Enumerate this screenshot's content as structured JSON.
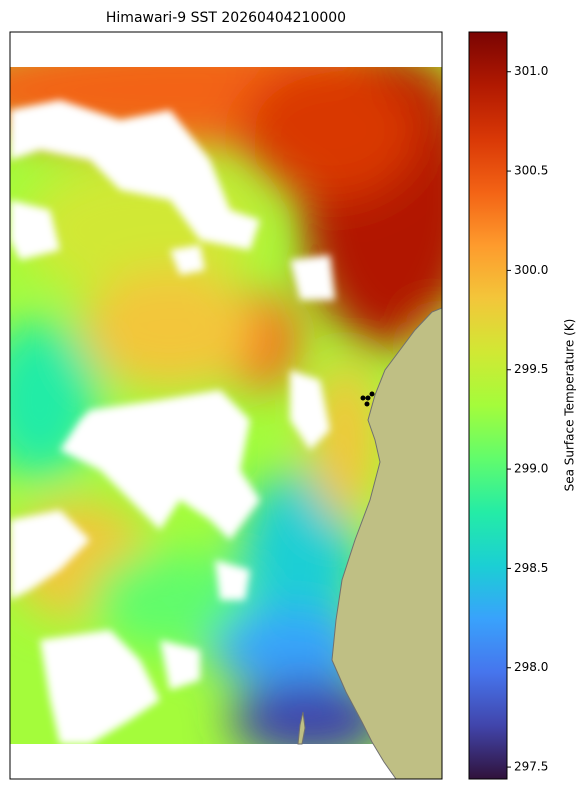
{
  "title": "Himawari-9 SST 20260404210000",
  "colorbar": {
    "label": "Sea Surface Temperature (K)",
    "lim": [
      297.44,
      301.2
    ],
    "ticks": [
      297.5,
      {
        "value": 298,
        "label": "298.0"
      },
      298.5,
      {
        "value": 299,
        "label": "299.0"
      },
      299.5,
      {
        "value": 300,
        "label": "300.0"
      },
      300.5,
      {
        "value": 301,
        "label": "301.0"
      }
    ],
    "colormap": [
      "#30123b",
      "#4145ab",
      "#4675ed",
      "#39a2fc",
      "#1bcfd4",
      "#24eca6",
      "#61fc6c",
      "#a4fc3b",
      "#d1e834",
      "#f3c63a",
      "#fe9b2d",
      "#f36315",
      "#d93806",
      "#b11901",
      "#7a0403"
    ]
  }
}
